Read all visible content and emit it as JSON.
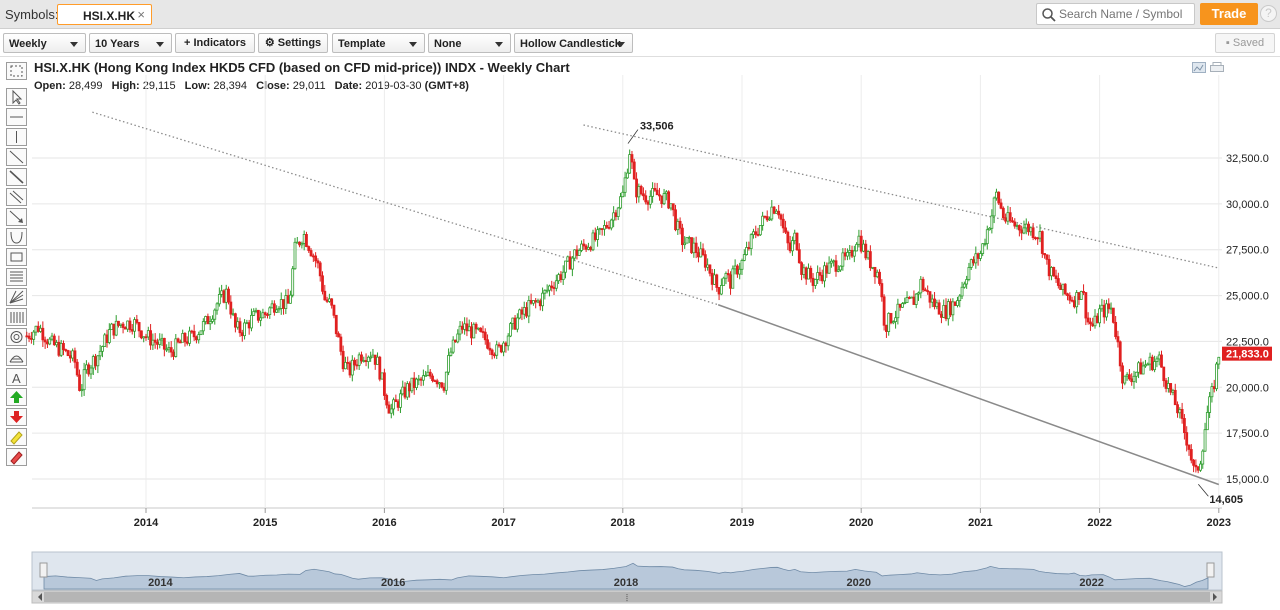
{
  "symbols_bar": {
    "label": "Symbols:",
    "symbol": "HSI.X.HK",
    "close_glyph": "×",
    "search_placeholder": "Search Name / Symbol",
    "trade_label": "Trade",
    "help_glyph": "?"
  },
  "toolbar": {
    "interval": "Weekly",
    "range": "10 Years",
    "indicators_label": "+ Indicators",
    "settings_label": "⚙ Settings",
    "template": "Template",
    "compare": "None",
    "chart_style": "Hollow Candlestick",
    "saved_label": "Saved"
  },
  "draw_tools": [
    "fullscreen-icon",
    "cursor-icon",
    "horizontal-line-icon",
    "vertical-line-icon",
    "trend-line-icon",
    "ray-icon",
    "parallel-channel-icon",
    "arrow-line-icon",
    "arc-icon",
    "rectangle-icon",
    "fib-retracement-icon",
    "fan-icon",
    "gann-grid-icon",
    "cycle-icon",
    "speed-lines-icon",
    "text-icon",
    "buy-arrow-icon",
    "sell-arrow-icon",
    "highlighter-icon",
    "eraser-icon"
  ],
  "header": {
    "title": "HSI.X.HK (Hong Kong Index HKD5 CFD (based on CFD mid-price)) INDX - Weekly Chart",
    "open_label": "Open:",
    "open": "28,499",
    "high_label": "High:",
    "high": "29,115",
    "low_label": "Low:",
    "low": "28,394",
    "close_label": "Close:",
    "close": "29,011",
    "date_label": "Date:",
    "date": "2019-03-30",
    "tz": "(GMT+8)"
  },
  "chart_data": {
    "type": "candlestick",
    "interval": "weekly",
    "x_range": [
      "2013-01",
      "2023-01"
    ],
    "xticks": [
      "2014",
      "2015",
      "2016",
      "2017",
      "2018",
      "2019",
      "2020",
      "2021",
      "2022",
      "2023"
    ],
    "y_range": [
      13000,
      35000
    ],
    "yticks": [
      15000,
      17500,
      20000,
      22500,
      25000,
      27500,
      30000,
      32500
    ],
    "ytick_labels": [
      "15,000.0",
      "17,500.0",
      "20,000.0",
      "22,500.0",
      "25,000.0",
      "27,500.0",
      "30,000.0",
      "32,500.0"
    ],
    "last_price": 21833,
    "last_price_label": "21,833.0",
    "annotations": [
      {
        "label": "33,506",
        "date": "2018.06",
        "value": 33506
      },
      {
        "label": "14,605",
        "date": "2022.82",
        "value": 14605
      }
    ],
    "trendlines": [
      {
        "style": "dotted",
        "from": [
          2013.55,
          35000
        ],
        "to": [
          2018.8,
          24500
        ]
      },
      {
        "style": "solid",
        "from": [
          2018.8,
          24500
        ],
        "to": [
          2023.0,
          14700
        ]
      },
      {
        "style": "dotted",
        "from": [
          2017.67,
          34300
        ],
        "to": [
          2023.0,
          26500
        ]
      }
    ],
    "price_path": [
      [
        2013.0,
        22800
      ],
      [
        2013.1,
        23300
      ],
      [
        2013.2,
        22400
      ],
      [
        2013.3,
        22000
      ],
      [
        2013.4,
        21500
      ],
      [
        2013.45,
        19800
      ],
      [
        2013.5,
        21000
      ],
      [
        2013.6,
        21800
      ],
      [
        2013.7,
        23100
      ],
      [
        2013.8,
        23500
      ],
      [
        2013.9,
        23500
      ],
      [
        2014.0,
        22800
      ],
      [
        2014.1,
        22400
      ],
      [
        2014.2,
        21900
      ],
      [
        2014.3,
        22500
      ],
      [
        2014.4,
        22800
      ],
      [
        2014.5,
        23500
      ],
      [
        2014.6,
        24600
      ],
      [
        2014.68,
        25200
      ],
      [
        2014.75,
        23200
      ],
      [
        2014.8,
        23100
      ],
      [
        2014.9,
        23800
      ],
      [
        2015.0,
        24000
      ],
      [
        2015.1,
        24700
      ],
      [
        2015.2,
        24500
      ],
      [
        2015.25,
        27500
      ],
      [
        2015.32,
        28400
      ],
      [
        2015.4,
        27300
      ],
      [
        2015.45,
        26500
      ],
      [
        2015.5,
        24800
      ],
      [
        2015.55,
        24500
      ],
      [
        2015.6,
        23000
      ],
      [
        2015.65,
        21500
      ],
      [
        2015.7,
        20800
      ],
      [
        2015.8,
        21800
      ],
      [
        2015.9,
        21900
      ],
      [
        2015.95,
        21200
      ],
      [
        2016.0,
        19800
      ],
      [
        2016.05,
        18700
      ],
      [
        2016.1,
        19100
      ],
      [
        2016.2,
        20000
      ],
      [
        2016.3,
        20300
      ],
      [
        2016.4,
        20700
      ],
      [
        2016.5,
        20200
      ],
      [
        2016.55,
        21800
      ],
      [
        2016.65,
        23300
      ],
      [
        2016.75,
        23000
      ],
      [
        2016.85,
        22600
      ],
      [
        2016.95,
        21900
      ],
      [
        2017.0,
        22500
      ],
      [
        2017.1,
        23600
      ],
      [
        2017.2,
        24300
      ],
      [
        2017.3,
        24700
      ],
      [
        2017.4,
        25600
      ],
      [
        2017.5,
        26300
      ],
      [
        2017.6,
        27300
      ],
      [
        2017.7,
        27800
      ],
      [
        2017.8,
        28200
      ],
      [
        2017.9,
        29200
      ],
      [
        2018.0,
        30500
      ],
      [
        2018.06,
        33000
      ],
      [
        2018.1,
        30800
      ],
      [
        2018.2,
        30400
      ],
      [
        2018.3,
        30500
      ],
      [
        2018.4,
        30100
      ],
      [
        2018.45,
        28800
      ],
      [
        2018.5,
        28000
      ],
      [
        2018.6,
        27600
      ],
      [
        2018.7,
        26800
      ],
      [
        2018.8,
        25300
      ],
      [
        2018.85,
        26200
      ],
      [
        2018.9,
        25700
      ],
      [
        2018.95,
        26400
      ],
      [
        2019.0,
        26800
      ],
      [
        2019.1,
        28300
      ],
      [
        2019.2,
        29300
      ],
      [
        2019.25,
        29800
      ],
      [
        2019.3,
        29900
      ],
      [
        2019.35,
        28500
      ],
      [
        2019.4,
        27400
      ],
      [
        2019.45,
        28300
      ],
      [
        2019.5,
        26500
      ],
      [
        2019.6,
        25800
      ],
      [
        2019.7,
        26400
      ],
      [
        2019.8,
        26800
      ],
      [
        2019.9,
        27000
      ],
      [
        2019.97,
        28300
      ],
      [
        2020.05,
        27100
      ],
      [
        2020.15,
        26100
      ],
      [
        2020.2,
        23300
      ],
      [
        2020.25,
        23800
      ],
      [
        2020.35,
        24300
      ],
      [
        2020.45,
        24800
      ],
      [
        2020.5,
        25700
      ],
      [
        2020.6,
        24600
      ],
      [
        2020.7,
        24100
      ],
      [
        2020.8,
        24700
      ],
      [
        2020.9,
        26500
      ],
      [
        2021.0,
        27300
      ],
      [
        2021.1,
        29500
      ],
      [
        2021.13,
        30600
      ],
      [
        2021.2,
        29200
      ],
      [
        2021.3,
        28800
      ],
      [
        2021.4,
        28700
      ],
      [
        2021.5,
        28300
      ],
      [
        2021.55,
        26800
      ],
      [
        2021.6,
        26100
      ],
      [
        2021.7,
        25100
      ],
      [
        2021.8,
        24800
      ],
      [
        2021.85,
        25500
      ],
      [
        2021.9,
        23600
      ],
      [
        2021.95,
        23300
      ],
      [
        2022.0,
        24100
      ],
      [
        2022.1,
        24300
      ],
      [
        2022.15,
        22500
      ],
      [
        2022.2,
        20300
      ],
      [
        2022.3,
        20800
      ],
      [
        2022.4,
        21300
      ],
      [
        2022.5,
        21500
      ],
      [
        2022.55,
        20500
      ],
      [
        2022.6,
        19600
      ],
      [
        2022.65,
        18900
      ],
      [
        2022.7,
        17800
      ],
      [
        2022.75,
        16800
      ],
      [
        2022.8,
        15100
      ],
      [
        2022.85,
        16200
      ],
      [
        2022.9,
        18500
      ],
      [
        2022.95,
        19800
      ],
      [
        2023.0,
        21800
      ]
    ]
  },
  "navigator": {
    "xticks": [
      "2014",
      "2016",
      "2018",
      "2020",
      "2022"
    ],
    "grip_glyph": "⦙"
  },
  "colors": {
    "up": "#2e9d2e",
    "down": "#e02020",
    "trade": "#f7941d",
    "last_price_bg": "#e02020"
  }
}
